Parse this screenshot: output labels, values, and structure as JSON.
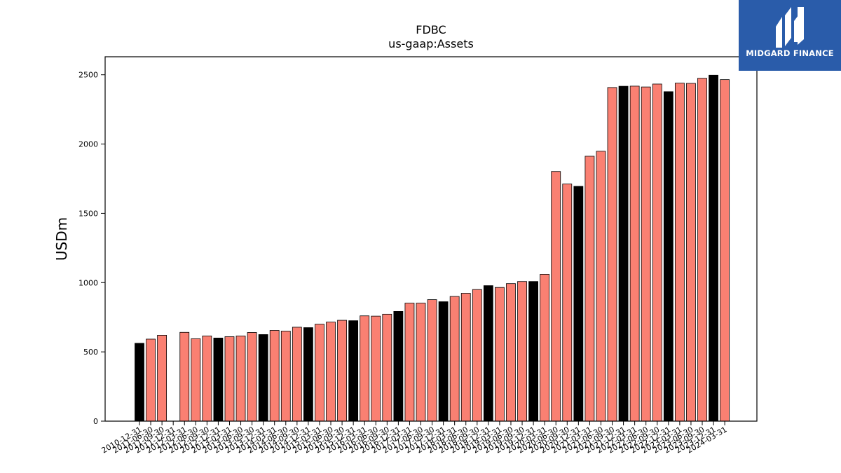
{
  "brand": {
    "name": "MIDGARD FINANCE",
    "background_color": "#2a5caa",
    "text_color": "#ffffff",
    "icon": "midgard-logo-icon"
  },
  "chart_data": {
    "type": "bar",
    "title": "FDBC",
    "subtitle": "us-gaap:Assets",
    "xlabel": "",
    "ylabel": "USDm",
    "ylim": [
      0,
      2630
    ],
    "yticks": [
      0,
      500,
      1000,
      1500,
      2000,
      2500
    ],
    "grid": false,
    "colors": {
      "quarterly": "#fa8072",
      "annual": "#000000",
      "edge": "#000000"
    },
    "categories": [
      "2010-12-31",
      "2011-06-30",
      "2011-09-30",
      "2011-12-31",
      "2012-03-31",
      "2012-06-30",
      "2012-09-30",
      "2012-12-31",
      "2013-03-31",
      "2013-06-30",
      "2013-09-30",
      "2013-12-31",
      "2014-03-31",
      "2014-06-30",
      "2014-09-30",
      "2014-12-31",
      "2015-03-31",
      "2015-06-30",
      "2015-09-30",
      "2015-12-31",
      "2016-03-31",
      "2016-06-30",
      "2016-09-30",
      "2016-12-31",
      "2017-03-31",
      "2017-06-30",
      "2017-09-30",
      "2017-12-31",
      "2018-03-31",
      "2018-06-30",
      "2018-09-30",
      "2018-12-31",
      "2019-03-31",
      "2019-06-30",
      "2019-09-30",
      "2019-12-31",
      "2020-03-31",
      "2020-06-30",
      "2020-09-30",
      "2020-12-31",
      "2021-03-31",
      "2021-06-30",
      "2021-09-30",
      "2021-12-31",
      "2022-03-31",
      "2022-06-30",
      "2022-09-30",
      "2022-12-31",
      "2023-03-31",
      "2023-06-30",
      "2023-09-30",
      "2023-12-31",
      "2024-03-31"
    ],
    "values": [
      562,
      592,
      620,
      null,
      641,
      595,
      615,
      600,
      610,
      615,
      640,
      625,
      655,
      650,
      678,
      675,
      700,
      715,
      728,
      725,
      760,
      758,
      772,
      792,
      852,
      852,
      877,
      862,
      900,
      923,
      950,
      978,
      965,
      993,
      1008,
      1008,
      1060,
      1802,
      1712,
      1695,
      1912,
      1948,
      2408,
      2417,
      2418,
      2412,
      2433,
      2378,
      2440,
      2438,
      2475,
      2497,
      2465
    ],
    "annual": [
      true,
      false,
      false,
      false,
      false,
      false,
      false,
      true,
      false,
      false,
      false,
      true,
      false,
      false,
      false,
      true,
      false,
      false,
      false,
      true,
      false,
      false,
      false,
      true,
      false,
      false,
      false,
      true,
      false,
      false,
      false,
      true,
      false,
      false,
      false,
      true,
      false,
      false,
      false,
      true,
      false,
      false,
      false,
      true,
      false,
      false,
      false,
      true,
      false,
      false,
      false,
      true,
      false
    ]
  }
}
